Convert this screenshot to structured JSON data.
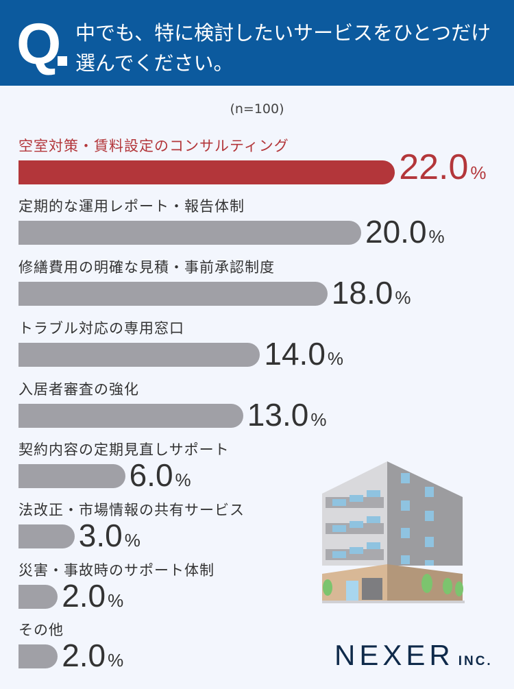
{
  "header": {
    "q_mark": "Q",
    "question": "中でも、特に検討したいサービスをひとつだけ選んでください。"
  },
  "sample": "(n=100)",
  "logo": {
    "name": "NEXER",
    "suffix": "INC."
  },
  "colors": {
    "header": "#0c5a9e",
    "highlight": "#b3363a",
    "bar": "#a0a0a6",
    "background": "#f3f6fd"
  },
  "chart_data": {
    "type": "bar",
    "orientation": "horizontal",
    "unit": "%",
    "categories": [
      "空室対策・賃料設定のコンサルティング",
      "定期的な運用レポート・報告体制",
      "修繕費用の明確な見積・事前承認制度",
      "トラブル対応の専用窓口",
      "入居者審査の強化",
      "契約内容の定期見直しサポート",
      "法改正・市場情報の共有サービス",
      "災害・事故時のサポート体制",
      "その他"
    ],
    "values": [
      22.0,
      20.0,
      18.0,
      14.0,
      13.0,
      6.0,
      3.0,
      2.0,
      2.0
    ],
    "labels": [
      "22.0",
      "20.0",
      "18.0",
      "14.0",
      "13.0",
      "6.0",
      "3.0",
      "2.0",
      "2.0"
    ],
    "highlight_index": 0,
    "grid": false
  }
}
